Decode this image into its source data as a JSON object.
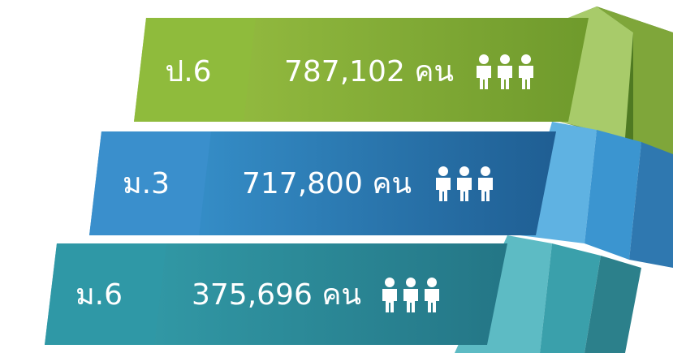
{
  "rows": [
    {
      "label": "ป.6",
      "count": "787,102",
      "unit": "คน"
    },
    {
      "label": "ม.3",
      "count": "717,800",
      "unit": "คน"
    },
    {
      "label": "ม.6",
      "count": "375,696",
      "unit": "คน"
    }
  ]
}
